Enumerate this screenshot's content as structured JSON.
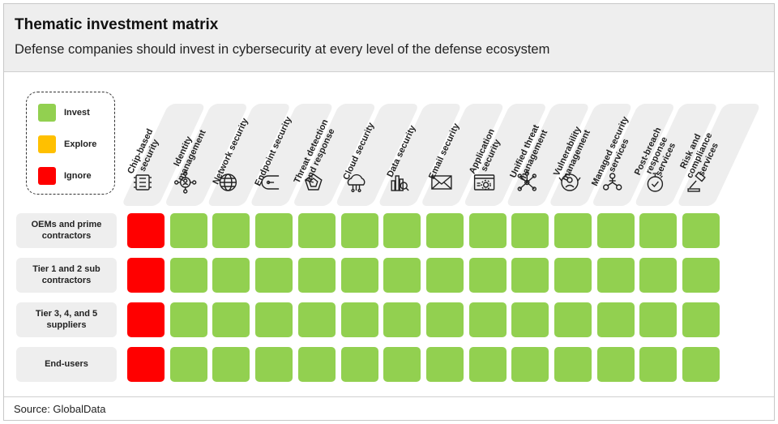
{
  "header": {
    "title": "Thematic investment matrix",
    "subtitle": "Defense companies should invest in cybersecurity at every level of the defense ecosystem"
  },
  "footer": {
    "source": "Source: GlobalData"
  },
  "legend": {
    "items": [
      {
        "label": "Invest",
        "color": "#92d050"
      },
      {
        "label": "Explore",
        "color": "#ffc000"
      },
      {
        "label": "Ignore",
        "color": "#ff0000"
      }
    ]
  },
  "chart_data": {
    "type": "table",
    "title": "Thematic investment matrix",
    "subtitle": "Defense companies should invest in cybersecurity at every level of the defense ecosystem",
    "columns": [
      {
        "lines": [
          "Chip-based",
          "security"
        ],
        "icon": "chip-icon"
      },
      {
        "lines": [
          "Identity",
          "management"
        ],
        "icon": "identity-icon"
      },
      {
        "lines": [
          "Network security"
        ],
        "icon": "globe-icon"
      },
      {
        "lines": [
          "Endpoint security"
        ],
        "icon": "endpoint-icon"
      },
      {
        "lines": [
          "Threat detection",
          "and response"
        ],
        "icon": "radar-icon"
      },
      {
        "lines": [
          "Cloud security"
        ],
        "icon": "cloud-icon"
      },
      {
        "lines": [
          "Data security"
        ],
        "icon": "data-icon"
      },
      {
        "lines": [
          "Email security"
        ],
        "icon": "email-icon"
      },
      {
        "lines": [
          "Application",
          "security"
        ],
        "icon": "app-window-icon"
      },
      {
        "lines": [
          "Unified threat",
          "management"
        ],
        "icon": "network-nodes-icon"
      },
      {
        "lines": [
          "Vulnerability",
          "management"
        ],
        "icon": "user-shield-icon"
      },
      {
        "lines": [
          "Managed security",
          "services"
        ],
        "icon": "managed-services-icon"
      },
      {
        "lines": [
          "Post-breach",
          "response",
          "services"
        ],
        "icon": "stopwatch-icon"
      },
      {
        "lines": [
          "Risk and",
          "compliance",
          "services"
        ],
        "icon": "gavel-icon"
      }
    ],
    "rows": [
      {
        "label": "OEMs and prime contractors",
        "values": [
          "Ignore",
          "Invest",
          "Invest",
          "Invest",
          "Invest",
          "Invest",
          "Invest",
          "Invest",
          "Invest",
          "Invest",
          "Invest",
          "Invest",
          "Invest",
          "Invest"
        ]
      },
      {
        "label": "Tier 1 and 2 sub contractors",
        "values": [
          "Ignore",
          "Invest",
          "Invest",
          "Invest",
          "Invest",
          "Invest",
          "Invest",
          "Invest",
          "Invest",
          "Invest",
          "Invest",
          "Invest",
          "Invest",
          "Invest"
        ]
      },
      {
        "label": "Tier 3, 4, and 5 suppliers",
        "values": [
          "Ignore",
          "Invest",
          "Invest",
          "Invest",
          "Invest",
          "Invest",
          "Invest",
          "Invest",
          "Invest",
          "Invest",
          "Invest",
          "Invest",
          "Invest",
          "Invest"
        ]
      },
      {
        "label": "End-users",
        "values": [
          "Ignore",
          "Invest",
          "Invest",
          "Invest",
          "Invest",
          "Invest",
          "Invest",
          "Invest",
          "Invest",
          "Invest",
          "Invest",
          "Invest",
          "Invest",
          "Invest"
        ]
      }
    ],
    "legend": [
      "Invest",
      "Explore",
      "Ignore"
    ]
  }
}
